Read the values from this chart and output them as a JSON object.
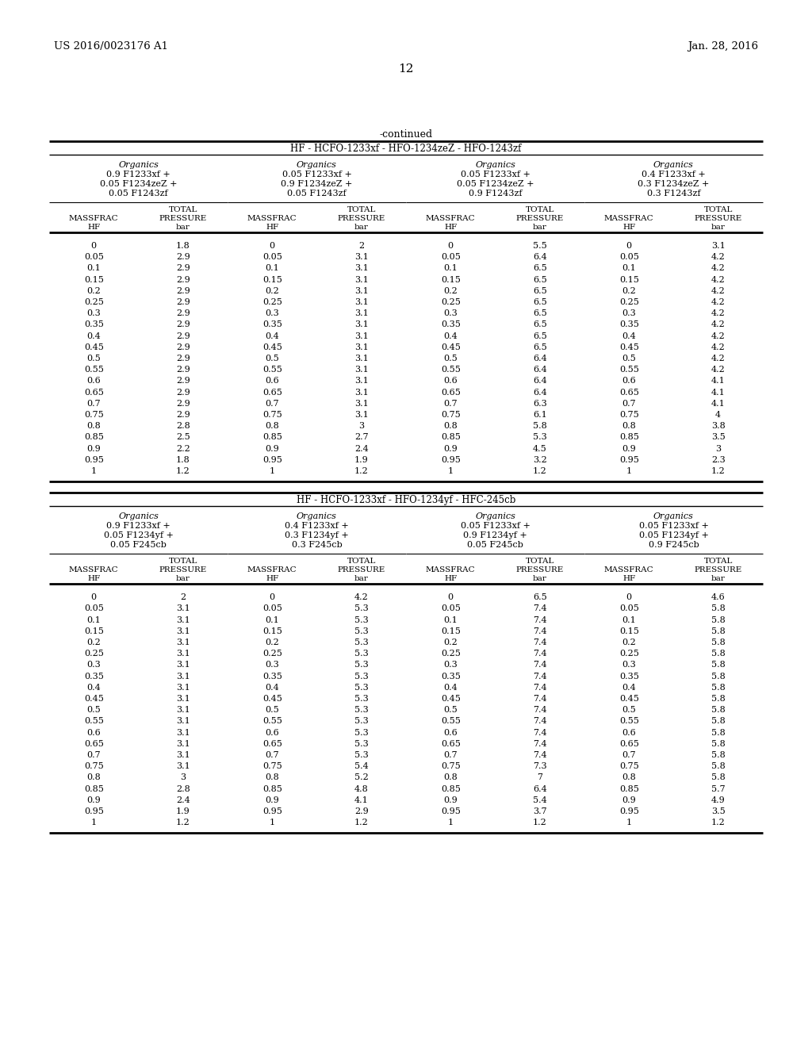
{
  "header_left": "US 2016/0023176 A1",
  "header_right": "Jan. 28, 2016",
  "page_number": "12",
  "continued_label": "-continued",
  "table1": {
    "title": "HF - HCFO-1233xf - HFO-1234zeZ - HFO-1243zf",
    "organics": [
      [
        "Organics",
        "0.9 F1233xf +",
        "0.05 F1234zeZ +",
        "0.05 F1243zf"
      ],
      [
        "Organics",
        "0.05 F1233xf +",
        "0.9 F1234zeZ +",
        "0.05 F1243zf"
      ],
      [
        "Organics",
        "0.05 F1233xf +",
        "0.05 F1234zeZ +",
        "0.9 F1243zf"
      ],
      [
        "Organics",
        "0.4 F1233xf +",
        "0.3 F1234zeZ +",
        "0.3 F1243zf"
      ]
    ],
    "data": [
      [
        0,
        1.8,
        0,
        2.0,
        0,
        5.5,
        0,
        3.1
      ],
      [
        0.05,
        2.9,
        0.05,
        3.1,
        0.05,
        6.4,
        0.05,
        4.2
      ],
      [
        0.1,
        2.9,
        0.1,
        3.1,
        0.1,
        6.5,
        0.1,
        4.2
      ],
      [
        0.15,
        2.9,
        0.15,
        3.1,
        0.15,
        6.5,
        0.15,
        4.2
      ],
      [
        0.2,
        2.9,
        0.2,
        3.1,
        0.2,
        6.5,
        0.2,
        4.2
      ],
      [
        0.25,
        2.9,
        0.25,
        3.1,
        0.25,
        6.5,
        0.25,
        4.2
      ],
      [
        0.3,
        2.9,
        0.3,
        3.1,
        0.3,
        6.5,
        0.3,
        4.2
      ],
      [
        0.35,
        2.9,
        0.35,
        3.1,
        0.35,
        6.5,
        0.35,
        4.2
      ],
      [
        0.4,
        2.9,
        0.4,
        3.1,
        0.4,
        6.5,
        0.4,
        4.2
      ],
      [
        0.45,
        2.9,
        0.45,
        3.1,
        0.45,
        6.5,
        0.45,
        4.2
      ],
      [
        0.5,
        2.9,
        0.5,
        3.1,
        0.5,
        6.4,
        0.5,
        4.2
      ],
      [
        0.55,
        2.9,
        0.55,
        3.1,
        0.55,
        6.4,
        0.55,
        4.2
      ],
      [
        0.6,
        2.9,
        0.6,
        3.1,
        0.6,
        6.4,
        0.6,
        4.1
      ],
      [
        0.65,
        2.9,
        0.65,
        3.1,
        0.65,
        6.4,
        0.65,
        4.1
      ],
      [
        0.7,
        2.9,
        0.7,
        3.1,
        0.7,
        6.3,
        0.7,
        4.1
      ],
      [
        0.75,
        2.9,
        0.75,
        3.1,
        0.75,
        6.1,
        0.75,
        4.0
      ],
      [
        0.8,
        2.8,
        0.8,
        3.0,
        0.8,
        5.8,
        0.8,
        3.8
      ],
      [
        0.85,
        2.5,
        0.85,
        2.7,
        0.85,
        5.3,
        0.85,
        3.5
      ],
      [
        0.9,
        2.2,
        0.9,
        2.4,
        0.9,
        4.5,
        0.9,
        3.0
      ],
      [
        0.95,
        1.8,
        0.95,
        1.9,
        0.95,
        3.2,
        0.95,
        2.3
      ],
      [
        1,
        1.2,
        1,
        1.2,
        1,
        1.2,
        1,
        1.2
      ]
    ]
  },
  "table2": {
    "title": "HF - HCFO-1233xf - HFO-1234yf - HFC-245cb",
    "organics": [
      [
        "Organics",
        "0.9 F1233xf +",
        "0.05 F1234yf +",
        "0.05 F245cb"
      ],
      [
        "Organics",
        "0.4 F1233xf +",
        "0.3 F1234yf +",
        "0.3 F245cb"
      ],
      [
        "Organics",
        "0.05 F1233xf +",
        "0.9 F1234yf +",
        "0.05 F245cb"
      ],
      [
        "Organics",
        "0.05 F1233xf +",
        "0.05 F1234yf +",
        "0.9 F245cb"
      ]
    ],
    "data": [
      [
        0,
        2.0,
        0,
        4.2,
        0,
        6.5,
        0,
        4.6
      ],
      [
        0.05,
        3.1,
        0.05,
        5.3,
        0.05,
        7.4,
        0.05,
        5.8
      ],
      [
        0.1,
        3.1,
        0.1,
        5.3,
        0.1,
        7.4,
        0.1,
        5.8
      ],
      [
        0.15,
        3.1,
        0.15,
        5.3,
        0.15,
        7.4,
        0.15,
        5.8
      ],
      [
        0.2,
        3.1,
        0.2,
        5.3,
        0.2,
        7.4,
        0.2,
        5.8
      ],
      [
        0.25,
        3.1,
        0.25,
        5.3,
        0.25,
        7.4,
        0.25,
        5.8
      ],
      [
        0.3,
        3.1,
        0.3,
        5.3,
        0.3,
        7.4,
        0.3,
        5.8
      ],
      [
        0.35,
        3.1,
        0.35,
        5.3,
        0.35,
        7.4,
        0.35,
        5.8
      ],
      [
        0.4,
        3.1,
        0.4,
        5.3,
        0.4,
        7.4,
        0.4,
        5.8
      ],
      [
        0.45,
        3.1,
        0.45,
        5.3,
        0.45,
        7.4,
        0.45,
        5.8
      ],
      [
        0.5,
        3.1,
        0.5,
        5.3,
        0.5,
        7.4,
        0.5,
        5.8
      ],
      [
        0.55,
        3.1,
        0.55,
        5.3,
        0.55,
        7.4,
        0.55,
        5.8
      ],
      [
        0.6,
        3.1,
        0.6,
        5.3,
        0.6,
        7.4,
        0.6,
        5.8
      ],
      [
        0.65,
        3.1,
        0.65,
        5.3,
        0.65,
        7.4,
        0.65,
        5.8
      ],
      [
        0.7,
        3.1,
        0.7,
        5.3,
        0.7,
        7.4,
        0.7,
        5.8
      ],
      [
        0.75,
        3.1,
        0.75,
        5.4,
        0.75,
        7.3,
        0.75,
        5.8
      ],
      [
        0.8,
        3.0,
        0.8,
        5.2,
        0.8,
        7.0,
        0.8,
        5.8
      ],
      [
        0.85,
        2.8,
        0.85,
        4.8,
        0.85,
        6.4,
        0.85,
        5.7
      ],
      [
        0.9,
        2.4,
        0.9,
        4.1,
        0.9,
        5.4,
        0.9,
        4.9
      ],
      [
        0.95,
        1.9,
        0.95,
        2.9,
        0.95,
        3.7,
        0.95,
        3.5
      ],
      [
        1,
        1.2,
        1,
        1.2,
        1,
        1.2,
        1,
        1.2
      ]
    ]
  }
}
